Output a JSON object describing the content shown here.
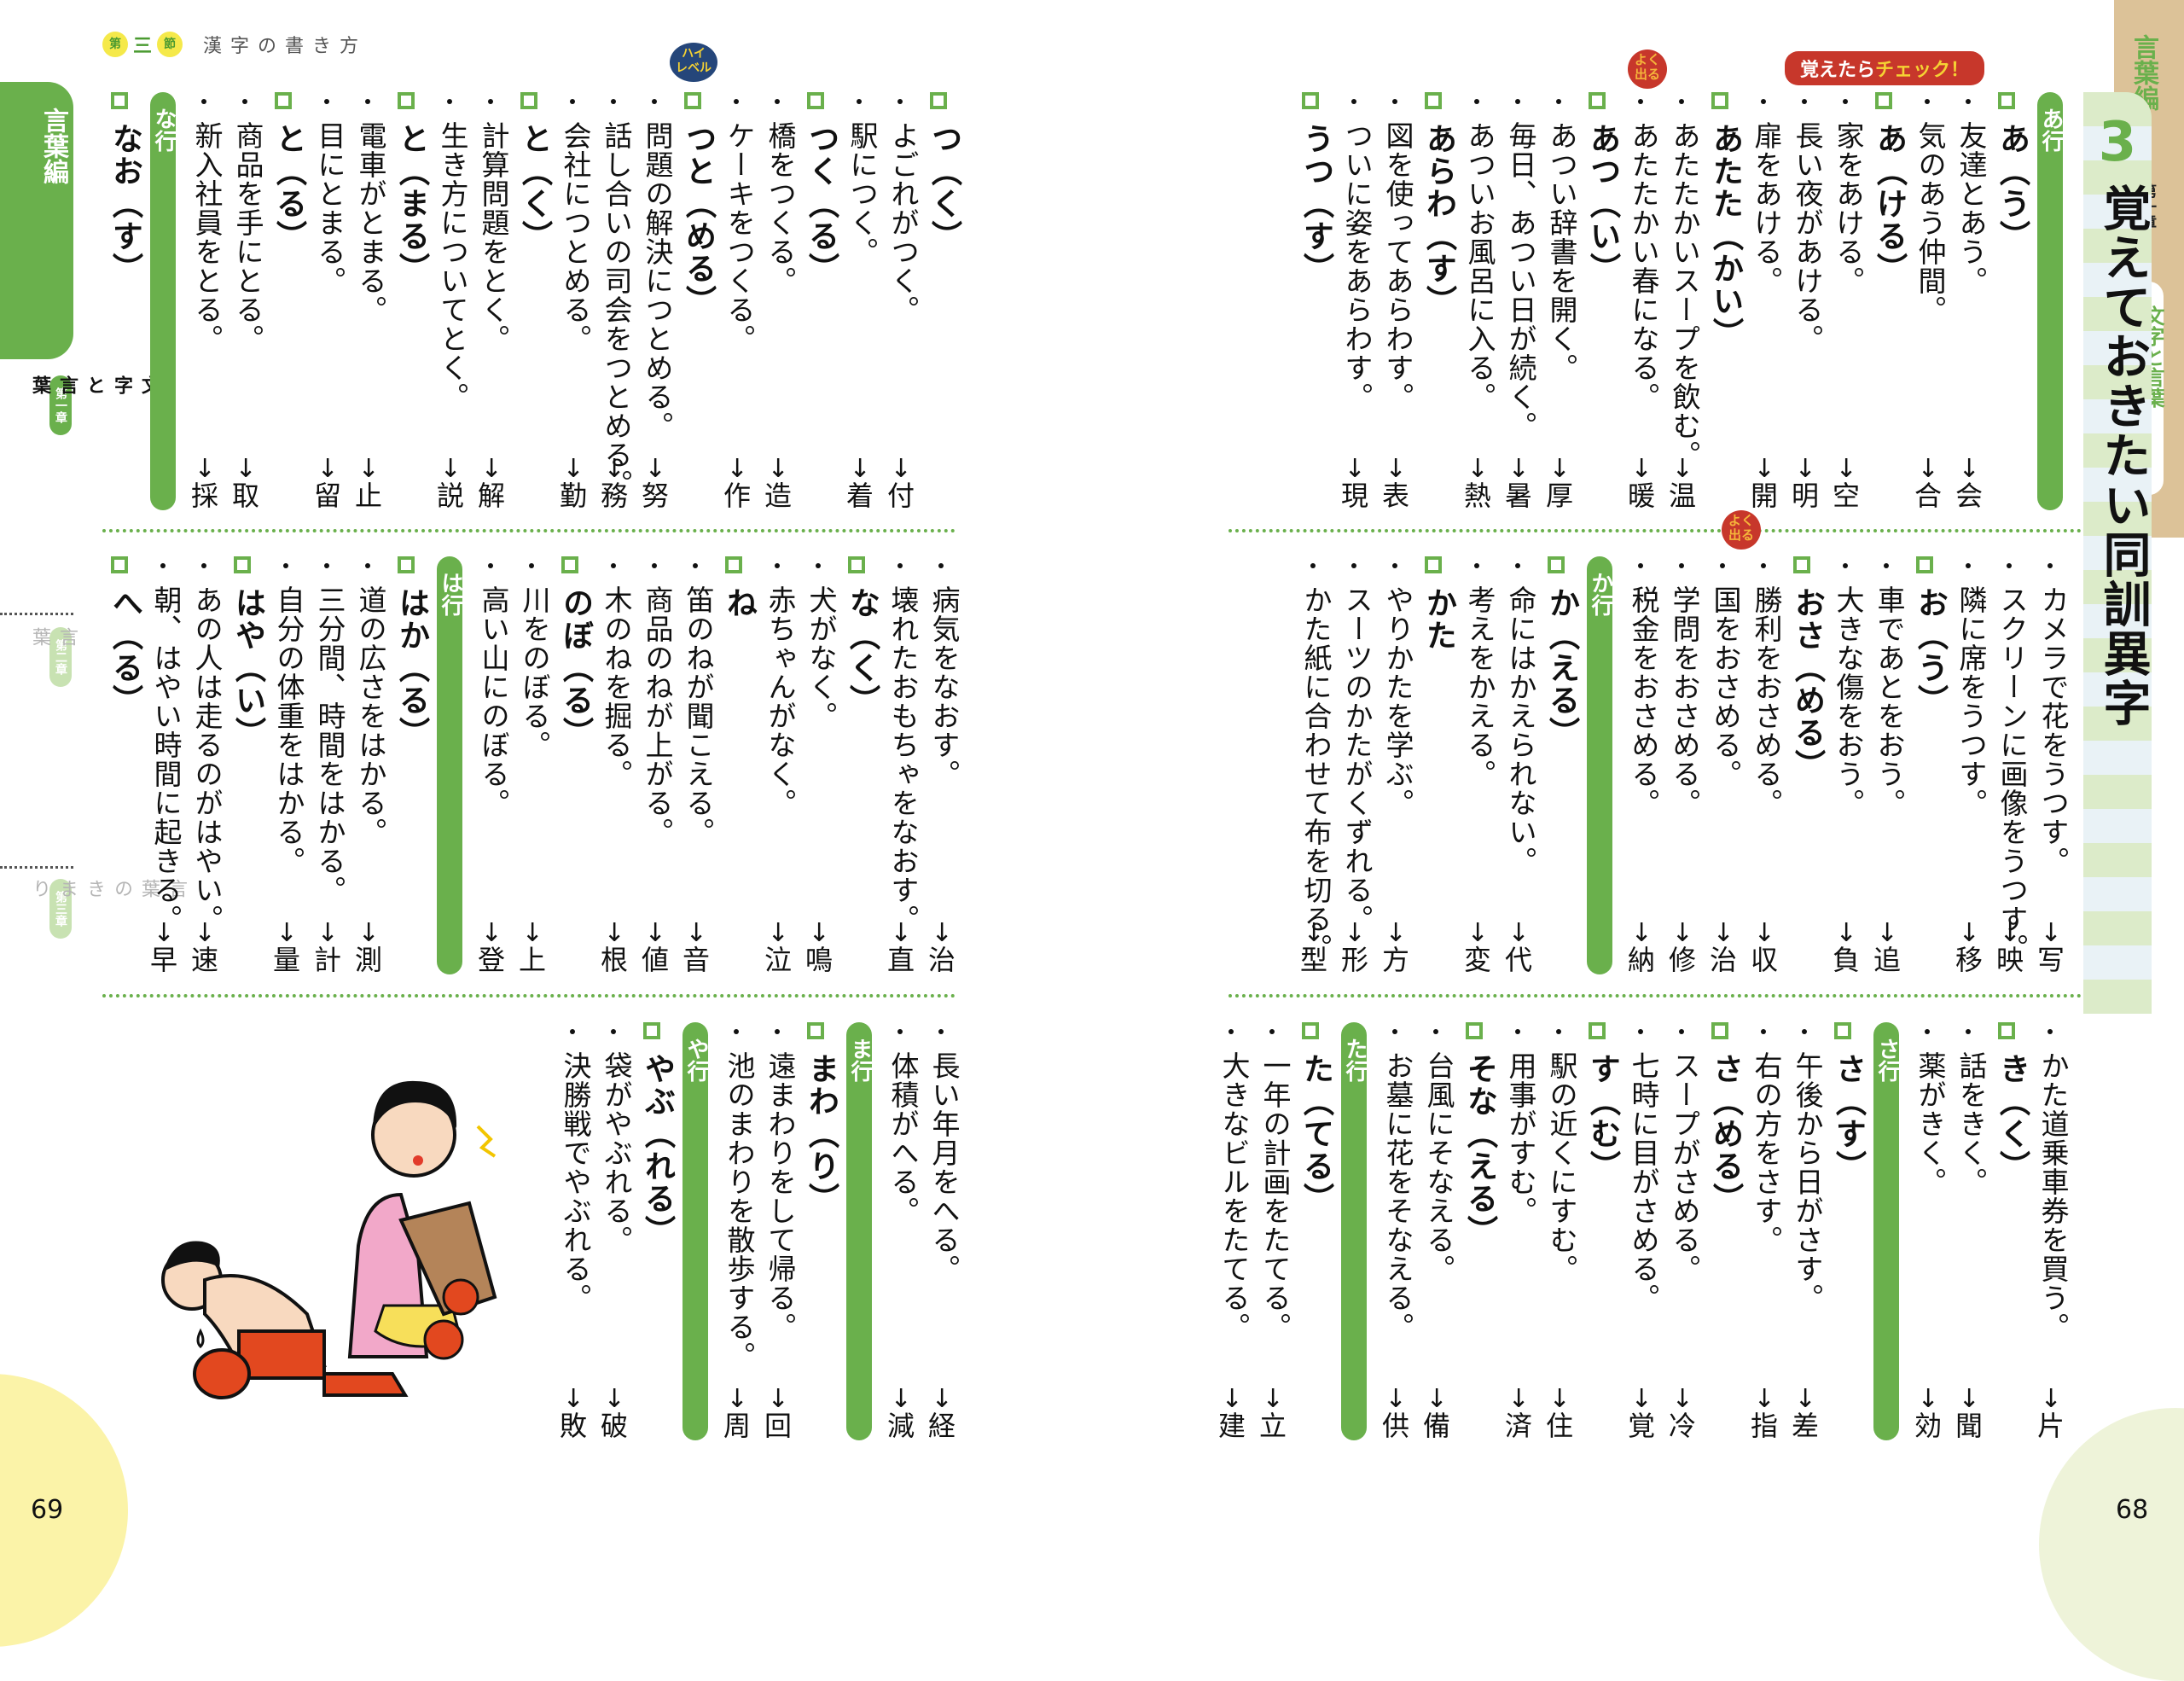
{
  "left_page": {
    "number": "69",
    "section_header": {
      "badge_left": "第",
      "numeral": "三",
      "badge_right": "節",
      "title": "漢字の書き方"
    },
    "side_tab": {
      "part": "言葉編",
      "chapters": [
        {
          "pill": "第一章",
          "name": "文字と言葉",
          "active": true
        },
        {
          "pill": "第二章",
          "name": "言葉",
          "active": false
        },
        {
          "pill": "第三章",
          "name": "言葉のきまり",
          "active": false
        }
      ]
    },
    "badge_high_level": {
      "line1": "ハイ",
      "line2": "レベル"
    },
    "bands": [
      {
        "columns": [
          {
            "type": "head",
            "text": "つ（く）"
          },
          {
            "type": "ex",
            "text": "よごれがつく。",
            "answer": "付"
          },
          {
            "type": "ex",
            "text": "駅につく。",
            "answer": "着"
          },
          {
            "type": "head",
            "text": "つく（る）"
          },
          {
            "type": "ex",
            "text": "橋をつくる。",
            "answer": "造"
          },
          {
            "type": "ex",
            "text": "ケーキをつくる。",
            "answer": "作"
          },
          {
            "type": "head",
            "text": "つと（める）",
            "badge": "high"
          },
          {
            "type": "ex",
            "text": "問題の解決につとめる。",
            "answer": "努"
          },
          {
            "type": "ex",
            "text": "話し合いの司会をつとめる。",
            "answer": "務"
          },
          {
            "type": "ex",
            "text": "会社につとめる。",
            "answer": "勤"
          },
          {
            "type": "head",
            "text": "と（く）"
          },
          {
            "type": "ex",
            "text": "計算問題をとく。",
            "answer": "解"
          },
          {
            "type": "ex",
            "text": "生き方についてとく。",
            "answer": "説"
          },
          {
            "type": "head",
            "text": "と（まる）"
          },
          {
            "type": "ex",
            "text": "電車がとまる。",
            "answer": "止"
          },
          {
            "type": "ex",
            "text": "目にとまる。",
            "answer": "留"
          },
          {
            "type": "head",
            "text": "と（る）"
          },
          {
            "type": "ex",
            "text": "商品を手にとる。",
            "answer": "取"
          },
          {
            "type": "ex",
            "text": "新入社員をとる。",
            "answer": "採"
          },
          {
            "type": "row",
            "text": "な行"
          },
          {
            "type": "head",
            "text": "なお（す）"
          }
        ]
      },
      {
        "columns": [
          {
            "type": "ex",
            "text": "病気をなおす。",
            "answer": "治"
          },
          {
            "type": "ex",
            "text": "壊れたおもちゃをなおす。",
            "answer": "直"
          },
          {
            "type": "head",
            "text": "な（く）"
          },
          {
            "type": "ex",
            "text": "犬がなく。",
            "answer": "鳴"
          },
          {
            "type": "ex",
            "text": "赤ちゃんがなく。",
            "answer": "泣"
          },
          {
            "type": "head",
            "text": "ね"
          },
          {
            "type": "ex",
            "text": "笛のねが聞こえる。",
            "answer": "音"
          },
          {
            "type": "ex",
            "text": "商品のねが上がる。",
            "answer": "値"
          },
          {
            "type": "ex",
            "text": "木のねを掘る。",
            "answer": "根"
          },
          {
            "type": "head",
            "text": "のぼ（る）"
          },
          {
            "type": "ex",
            "text": "川をのぼる。",
            "answer": "上"
          },
          {
            "type": "ex",
            "text": "高い山にのぼる。",
            "answer": "登"
          },
          {
            "type": "row",
            "text": "は行"
          },
          {
            "type": "head",
            "text": "はか（る）"
          },
          {
            "type": "ex",
            "text": "道の広さをはかる。",
            "answer": "測"
          },
          {
            "type": "ex",
            "text": "三分間、時間をはかる。",
            "answer": "計"
          },
          {
            "type": "ex",
            "text": "自分の体重をはかる。",
            "answer": "量"
          },
          {
            "type": "head",
            "text": "はや（い）"
          },
          {
            "type": "ex",
            "text": "あの人は走るのがはやい。",
            "answer": "速"
          },
          {
            "type": "ex",
            "text": "朝、はやい時間に起きる。",
            "answer": "早"
          },
          {
            "type": "head",
            "text": "へ（る）"
          }
        ]
      },
      {
        "columns": [
          {
            "type": "ex",
            "text": "長い年月をへる。",
            "answer": "経"
          },
          {
            "type": "ex",
            "text": "体積がへる。",
            "answer": "減"
          },
          {
            "type": "row",
            "text": "ま行"
          },
          {
            "type": "head",
            "text": "まわ（り）"
          },
          {
            "type": "ex",
            "text": "遠まわりをして帰る。",
            "answer": "回"
          },
          {
            "type": "ex",
            "text": "池のまわりを散歩する。",
            "answer": "周"
          },
          {
            "type": "row",
            "text": "や行"
          },
          {
            "type": "head",
            "text": "やぶ（れる）"
          },
          {
            "type": "ex",
            "text": "袋がやぶれる。",
            "answer": "破"
          },
          {
            "type": "ex",
            "text": "決勝戦でやぶれる。",
            "answer": "敗"
          }
        ]
      }
    ],
    "illustration": {
      "description": "boxer kneeling defeated; woman with torn paper bag of apples"
    }
  },
  "right_page": {
    "number": "68",
    "side_tab": {
      "part": "言葉編",
      "chapter": "第一章",
      "chapter_name": "文字と言葉"
    },
    "title": {
      "number": "3",
      "text": "覚えておきたい同訓異字"
    },
    "check_banner": {
      "prefix": "覚えたら",
      "emphasis": "チェック！"
    },
    "badge_frequent": {
      "line1": "よく",
      "line2": "出る"
    },
    "bands": [
      {
        "columns": [
          {
            "type": "row",
            "text": "あ行"
          },
          {
            "type": "head",
            "text": "あ（う）"
          },
          {
            "type": "ex",
            "text": "友達とあう。",
            "answer": "会"
          },
          {
            "type": "ex",
            "text": "気のあう仲間。",
            "answer": "合"
          },
          {
            "type": "head",
            "text": "あ（ける）"
          },
          {
            "type": "ex",
            "text": "家をあける。",
            "answer": "空"
          },
          {
            "type": "ex",
            "text": "長い夜があける。",
            "answer": "明"
          },
          {
            "type": "ex",
            "text": "扉をあける。",
            "answer": "開"
          },
          {
            "type": "head",
            "text": "あたた（かい）",
            "badge": "frequent"
          },
          {
            "type": "ex",
            "text": "あたたかいスープを飲む。",
            "answer": "温"
          },
          {
            "type": "ex",
            "text": "あたたかい春になる。",
            "answer": "暖"
          },
          {
            "type": "head",
            "text": "あつ（い）"
          },
          {
            "type": "ex",
            "text": "あつい辞書を開く。",
            "answer": "厚"
          },
          {
            "type": "ex",
            "text": "毎日、あつい日が続く。",
            "answer": "暑"
          },
          {
            "type": "ex",
            "text": "あついお風呂に入る。",
            "answer": "熱"
          },
          {
            "type": "head",
            "text": "あらわ（す）"
          },
          {
            "type": "ex",
            "text": "図を使ってあらわす。",
            "answer": "表"
          },
          {
            "type": "ex",
            "text": "ついに姿をあらわす。",
            "answer": "現"
          },
          {
            "type": "head",
            "text": "うつ（す）"
          }
        ]
      },
      {
        "columns": [
          {
            "type": "ex",
            "text": "カメラで花をうつす。",
            "answer": "写"
          },
          {
            "type": "ex",
            "text": "スクリーンに画像をうつす。",
            "answer": "映"
          },
          {
            "type": "ex",
            "text": "隣に席をうつす。",
            "answer": "移"
          },
          {
            "type": "head",
            "text": "お（う）"
          },
          {
            "type": "ex",
            "text": "車であとをおう。",
            "answer": "追"
          },
          {
            "type": "ex",
            "text": "大きな傷をおう。",
            "answer": "負"
          },
          {
            "type": "head",
            "text": "おさ（める）",
            "badge": "frequent"
          },
          {
            "type": "ex",
            "text": "勝利をおさめる。",
            "answer": "収"
          },
          {
            "type": "ex",
            "text": "国をおさめる。",
            "answer": "治"
          },
          {
            "type": "ex",
            "text": "学問をおさめる。",
            "answer": "修"
          },
          {
            "type": "ex",
            "text": "税金をおさめる。",
            "answer": "納"
          },
          {
            "type": "row",
            "text": "か行"
          },
          {
            "type": "head",
            "text": "か（える）"
          },
          {
            "type": "ex",
            "text": "命にはかえられない。",
            "answer": "代"
          },
          {
            "type": "ex",
            "text": "考えをかえる。",
            "answer": "変"
          },
          {
            "type": "head",
            "text": "かた"
          },
          {
            "type": "ex",
            "text": "やりかたを学ぶ。",
            "answer": "方"
          },
          {
            "type": "ex",
            "text": "スーツのかたがくずれる。",
            "answer": "形"
          },
          {
            "type": "ex",
            "text": "かた紙に合わせて布を切る。",
            "answer": "型"
          }
        ]
      },
      {
        "columns": [
          {
            "type": "ex",
            "text": "かた道乗車券を買う。",
            "answer": "片"
          },
          {
            "type": "head",
            "text": "き（く）"
          },
          {
            "type": "ex",
            "text": "話をきく。",
            "answer": "聞"
          },
          {
            "type": "ex",
            "text": "薬がきく。",
            "answer": "効"
          },
          {
            "type": "row",
            "text": "さ行"
          },
          {
            "type": "head",
            "text": "さ（す）"
          },
          {
            "type": "ex",
            "text": "午後から日がさす。",
            "answer": "差"
          },
          {
            "type": "ex",
            "text": "右の方をさす。",
            "answer": "指"
          },
          {
            "type": "head",
            "text": "さ（める）"
          },
          {
            "type": "ex",
            "text": "スープがさめる。",
            "answer": "冷"
          },
          {
            "type": "ex",
            "text": "七時に目がさめる。",
            "answer": "覚"
          },
          {
            "type": "head",
            "text": "す（む）"
          },
          {
            "type": "ex",
            "text": "駅の近くにすむ。",
            "answer": "住"
          },
          {
            "type": "ex",
            "text": "用事がすむ。",
            "answer": "済"
          },
          {
            "type": "head",
            "text": "そな（える）"
          },
          {
            "type": "ex",
            "text": "台風にそなえる。",
            "answer": "備"
          },
          {
            "type": "ex",
            "text": "お墓に花をそなえる。",
            "answer": "供"
          },
          {
            "type": "row",
            "text": "た行"
          },
          {
            "type": "head",
            "text": "た（てる）"
          },
          {
            "type": "ex",
            "text": "一年の計画をたてる。",
            "answer": "立"
          },
          {
            "type": "ex",
            "text": "大きなビルをたてる。",
            "answer": "建"
          }
        ]
      }
    ]
  },
  "colors": {
    "accent_green": "#6ab04c",
    "badge_red": "#c7372b",
    "badge_navy": "#25467a",
    "tab_kraft": "#dcc298",
    "highlight_yellow": "#f5e94a"
  }
}
